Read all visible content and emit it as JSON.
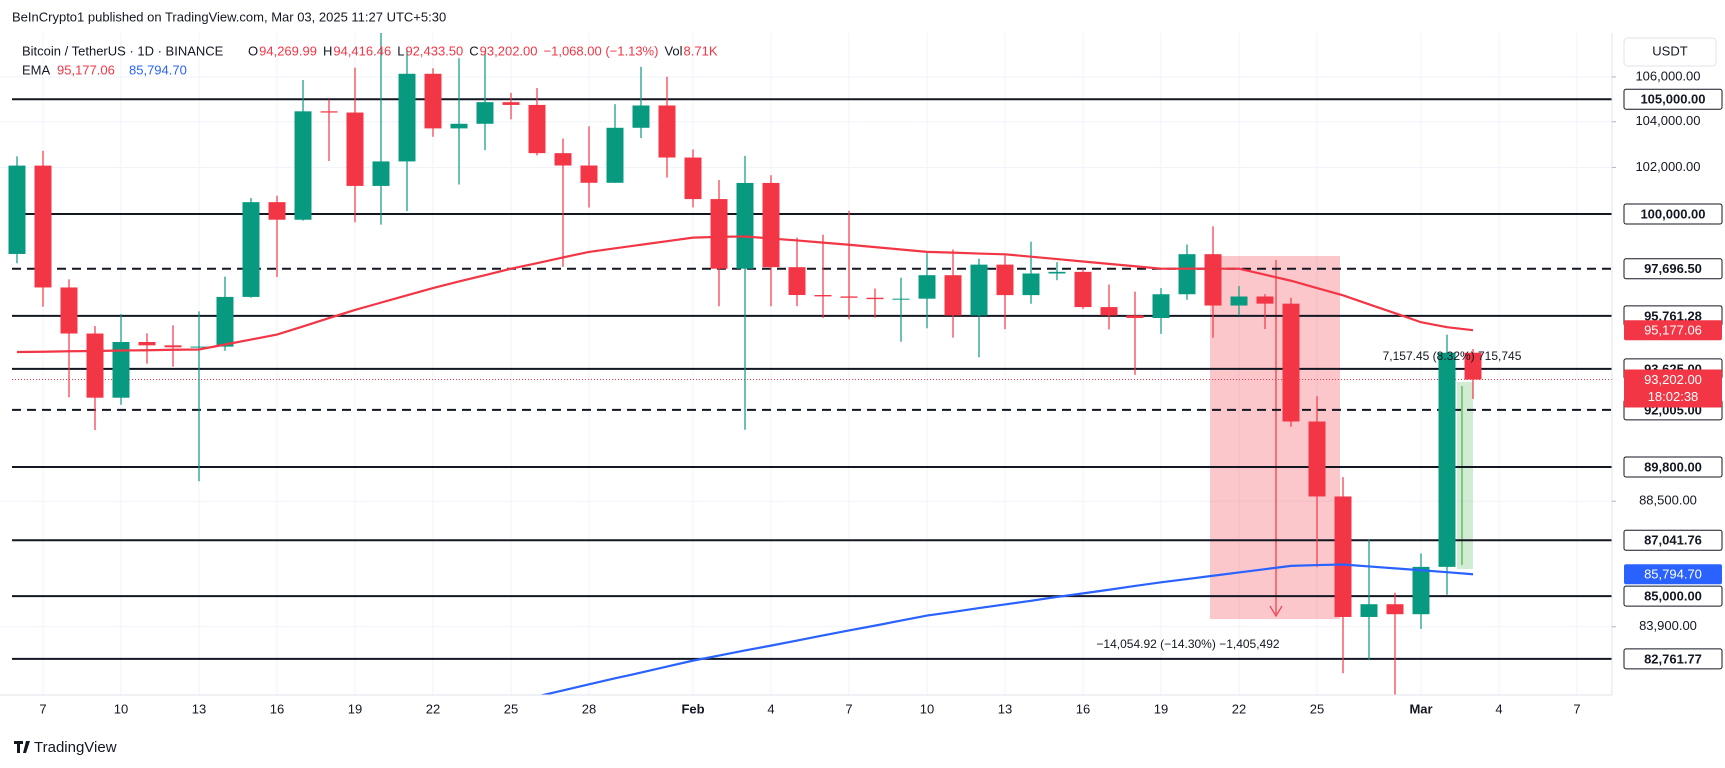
{
  "page": {
    "publisher": "BeInCrypto1 published on TradingView.com, Mar 03, 2025 11:27 UTC+5:30",
    "currency": "USDT",
    "footer": "TradingView"
  },
  "chart_data": {
    "type": "candlestick",
    "title": "Bitcoin / TetherUS · 1D · BINANCE",
    "legend": [
      {
        "key": "O",
        "text": "94,269.99"
      },
      {
        "key": "H",
        "text": "94,416.46"
      },
      {
        "key": "L",
        "text": "92,433.50"
      },
      {
        "key": "C",
        "text": "93,202.00"
      },
      {
        "key": "",
        "text": "−1,068.00 (−1.13%)"
      },
      {
        "key": "Vol",
        "text": "8.71K"
      }
    ],
    "log_scale": true,
    "grid": true,
    "up_color": "#089981",
    "down_color": "#f23645",
    "ylim": [
      81500,
      108000
    ],
    "yticks": [
      {
        "value": 106000,
        "label": "106,000.00"
      },
      {
        "value": 104000,
        "label": "104,000.00"
      },
      {
        "value": 102000,
        "label": "102,000.00"
      },
      {
        "value": 88500,
        "label": "88,500.00"
      },
      {
        "value": 83900,
        "label": "83,900.00"
      }
    ],
    "categories": [
      null,
      "7",
      null,
      null,
      "10",
      null,
      null,
      "13",
      null,
      null,
      "16",
      null,
      null,
      "19",
      null,
      null,
      "22",
      null,
      null,
      "25",
      null,
      null,
      "28",
      null,
      null,
      null,
      "Feb",
      null,
      null,
      "4",
      null,
      null,
      "7",
      null,
      null,
      "10",
      null,
      null,
      "13",
      null,
      null,
      "16",
      null,
      null,
      "19",
      null,
      null,
      "22",
      null,
      null,
      "25",
      null,
      null,
      null,
      "Mar",
      null,
      null,
      "4",
      null,
      null,
      "7",
      null
    ],
    "open": [
      98314,
      102078,
      96923,
      95043,
      92484,
      94701,
      94566,
      94488,
      94516,
      96534,
      100504,
      99756,
      104462,
      104408,
      101200,
      102260,
      106143,
      103706,
      103910,
      104870,
      104746,
      102620,
      102082,
      101335,
      103733,
      104722,
      102429,
      100635,
      97700,
      101328,
      97763,
      96612,
      96554,
      96500,
      96444,
      96462,
      97430,
      95778,
      97869,
      96608,
      97500,
      97569,
      96118,
      95780,
      95671,
      96644,
      98305,
      96181,
      96551,
      96258,
      91552,
      88680,
      84250,
      84708,
      84349,
      86064,
      94269.99,
      null,
      null,
      null,
      null,
      null
    ],
    "high": [
      102482,
      102724,
      97258,
      95349,
      95836,
      95050,
      95378,
      95940,
      97371,
      100681,
      100781,
      105865,
      104988,
      106422,
      109588,
      107240,
      106394,
      106850,
      107120,
      105286,
      105500,
      103260,
      103800,
      104782,
      106457,
      106012,
      102783,
      101456,
      102500,
      101660,
      99000,
      99120,
      100137,
      96880,
      97323,
      98345,
      98500,
      98119,
      98249,
      98826,
      97972,
      97704,
      97046,
      96753,
      96899,
      98711,
      99475,
      96980,
      96650,
      96500,
      92540,
      89414,
      87078,
      85120,
      86558,
      95000,
      94416.46,
      null,
      null,
      null,
      null,
      null
    ],
    "low": [
      97926,
      96132,
      92500,
      91220,
      92206,
      93831,
      93712,
      89256,
      94346,
      96500,
      97352,
      99716,
      102277,
      99651,
      99550,
      100119,
      103339,
      101262,
      102750,
      104106,
      102520,
      97777,
      100272,
      101328,
      103278,
      101560,
      100279,
      96150,
      91231,
      96150,
      96155,
      95676,
      95620,
      95688,
      94713,
      95256,
      94876,
      94088,
      95217,
      96252,
      97223,
      96046,
      95205,
      93388,
      95029,
      96415,
      94871,
      95770,
      95227,
      91349,
      86050,
      82256,
      82716,
      78258,
      83824,
      85050,
      92433.5,
      null,
      null,
      null,
      null,
      null
    ],
    "close": [
      102078,
      96923,
      95043,
      92484,
      94701,
      94566,
      94488,
      94516,
      96534,
      100504,
      99756,
      104462,
      104408,
      101200,
      102260,
      106143,
      103706,
      103910,
      104870,
      104746,
      102620,
      102082,
      101335,
      103733,
      104722,
      102429,
      100635,
      97700,
      101328,
      97763,
      96612,
      96555,
      96500,
      96444,
      96462,
      97430,
      95778,
      97869,
      96608,
      97500,
      97569,
      96118,
      95780,
      95671,
      96644,
      98305,
      96181,
      96551,
      96258,
      91552,
      88680,
      84250,
      84708,
      84349,
      86064,
      94270,
      93202,
      null,
      null,
      null,
      null,
      null
    ],
    "last_label": "93,202.00",
    "countdown": "18:02:38",
    "ema": {
      "label": "EMA",
      "series": [
        {
          "color": "#f23645",
          "last_label": "95,177.06",
          "values": [
            94300,
            94310,
            94330,
            94340,
            94360,
            94370,
            94390,
            94400,
            94600,
            94800,
            95000,
            95330,
            95670,
            96000,
            96300,
            96600,
            96900,
            97170,
            97430,
            97700,
            97930,
            98170,
            98400,
            98550,
            98700,
            98850,
            99000,
            99030,
            99050,
            98960,
            98880,
            98790,
            98700,
            98600,
            98500,
            98400,
            98370,
            98330,
            98300,
            98200,
            98100,
            98000,
            97900,
            97800,
            97700,
            97700,
            97700,
            97700,
            97450,
            97200,
            96900,
            96600,
            96230,
            95870,
            95500,
            95300,
            95177.06,
            null,
            null,
            null,
            null,
            null
          ]
        },
        {
          "color": "#2962ff",
          "last_label": "85,794.70",
          "values": [
            null,
            null,
            null,
            null,
            null,
            null,
            null,
            null,
            null,
            null,
            null,
            null,
            null,
            null,
            null,
            null,
            null,
            null,
            null,
            null,
            81450,
            81660,
            81870,
            82080,
            82280,
            82490,
            82700,
            82880,
            83060,
            83230,
            83410,
            83590,
            83770,
            83940,
            84120,
            84300,
            84430,
            84570,
            84700,
            84830,
            84970,
            85100,
            85230,
            85370,
            85500,
            85620,
            85740,
            85860,
            85980,
            86100,
            86130,
            86150,
            86080,
            86010,
            85940,
            85870,
            85794.7,
            null,
            null,
            null,
            null,
            null
          ]
        }
      ]
    },
    "levels": [
      {
        "value": 105000,
        "label": "105,000.00",
        "dashed": false
      },
      {
        "value": 100000,
        "label": "100,000.00",
        "dashed": false
      },
      {
        "value": 97696.5,
        "label": "97,696.50",
        "dashed": true
      },
      {
        "value": 95761.28,
        "label": "95,761.28",
        "dashed": false
      },
      {
        "value": 93625,
        "label": "93,625.00",
        "dashed": false
      },
      {
        "value": 92005,
        "label": "92,005.00",
        "dashed": true
      },
      {
        "value": 89800,
        "label": "89,800.00",
        "dashed": false
      },
      {
        "value": 87041.76,
        "label": "87,041.76",
        "dashed": false
      },
      {
        "value": 85000,
        "label": "85,000.00",
        "dashed": false
      },
      {
        "value": 82761.77,
        "label": "82,761.77",
        "dashed": false
      }
    ],
    "measures": [
      {
        "label": "−14,054.92 (−14.30%) −1,405,492"
      },
      {
        "label": "7,157.45 (8.32%) 715,745"
      }
    ]
  }
}
